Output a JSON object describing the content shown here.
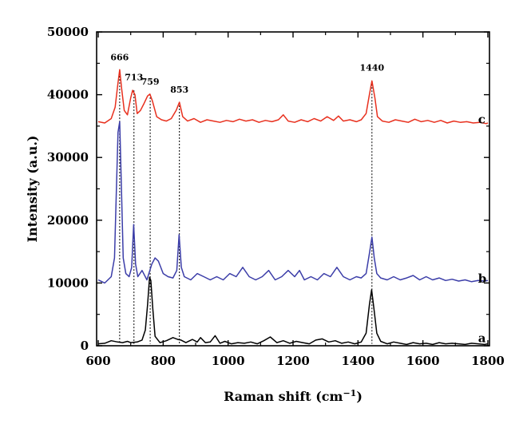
{
  "chart_data": {
    "type": "line",
    "title": "",
    "xlabel": "Raman shift (cm",
    "xlabel_sup": "−1",
    "xlabel_close": ")",
    "ylabel": "Intensity (a.u.)",
    "xlim": [
      595,
      1805
    ],
    "ylim": [
      0,
      50000
    ],
    "x_ticks": [
      600,
      800,
      1000,
      1200,
      1400,
      1600,
      1800
    ],
    "y_ticks": [
      0,
      10000,
      20000,
      30000,
      40000,
      50000
    ],
    "grid": false,
    "peak_markers": [
      {
        "label": "666",
        "x": 666,
        "peak_y": 44000,
        "label_y": 45500
      },
      {
        "label": "713",
        "x": 710,
        "peak_y": 40700,
        "label_y": 42300
      },
      {
        "label": "759",
        "x": 760,
        "peak_y": 40100,
        "label_y": 41600
      },
      {
        "label": "853",
        "x": 850,
        "peak_y": 38800,
        "label_y": 40300
      },
      {
        "label": "1440",
        "x": 1443,
        "peak_y": 42200,
        "label_y": 43800
      }
    ],
    "series": [
      {
        "name": "a",
        "color": "#000000",
        "label_x": 1770,
        "label_y": 1200,
        "x": [
          600,
          620,
          640,
          660,
          675,
          690,
          700,
          720,
          735,
          745,
          752,
          758,
          762,
          768,
          775,
          790,
          810,
          830,
          845,
          855,
          870,
          890,
          905,
          915,
          930,
          945,
          960,
          975,
          990,
          1010,
          1030,
          1050,
          1070,
          1090,
          1110,
          1130,
          1150,
          1170,
          1190,
          1210,
          1230,
          1250,
          1270,
          1290,
          1310,
          1330,
          1350,
          1370,
          1390,
          1410,
          1425,
          1435,
          1442,
          1450,
          1458,
          1470,
          1490,
          1510,
          1530,
          1550,
          1570,
          1590,
          1610,
          1630,
          1650,
          1670,
          1690,
          1710,
          1730,
          1750,
          1770,
          1790,
          1800
        ],
        "y": [
          300,
          400,
          800,
          600,
          500,
          700,
          500,
          600,
          900,
          2500,
          6500,
          10900,
          10400,
          6000,
          1500,
          500,
          800,
          1300,
          1000,
          900,
          500,
          1000,
          600,
          1300,
          500,
          600,
          1600,
          400,
          700,
          300,
          500,
          400,
          600,
          300,
          800,
          1400,
          500,
          800,
          400,
          700,
          500,
          300,
          900,
          1100,
          600,
          800,
          400,
          600,
          300,
          600,
          2000,
          6500,
          8900,
          5500,
          2000,
          700,
          300,
          600,
          400,
          200,
          500,
          300,
          400,
          200,
          500,
          300,
          400,
          300,
          200,
          400,
          300,
          200,
          300
        ]
      },
      {
        "name": "b",
        "color": "#3b3da8",
        "label_x": 1770,
        "label_y": 10700,
        "x": [
          600,
          620,
          640,
          650,
          656,
          661,
          666,
          671,
          677,
          685,
          695,
          703,
          709,
          715,
          722,
          735,
          750,
          765,
          775,
          785,
          800,
          815,
          830,
          842,
          849,
          856,
          865,
          885,
          905,
          925,
          945,
          965,
          985,
          1005,
          1025,
          1045,
          1065,
          1085,
          1105,
          1125,
          1145,
          1165,
          1185,
          1205,
          1220,
          1235,
          1255,
          1275,
          1295,
          1315,
          1335,
          1355,
          1375,
          1395,
          1410,
          1425,
          1436,
          1443,
          1450,
          1458,
          1470,
          1490,
          1510,
          1530,
          1550,
          1570,
          1590,
          1610,
          1630,
          1650,
          1670,
          1690,
          1710,
          1730,
          1750,
          1770,
          1790,
          1800
        ],
        "y": [
          10500,
          10000,
          11000,
          14000,
          25000,
          34000,
          35700,
          26000,
          14000,
          11500,
          11000,
          12500,
          19300,
          13000,
          11000,
          12000,
          10500,
          13000,
          14000,
          13500,
          11500,
          11000,
          10800,
          12000,
          17700,
          12500,
          11000,
          10500,
          11500,
          11000,
          10500,
          11000,
          10500,
          11500,
          11000,
          12500,
          11000,
          10500,
          11000,
          12000,
          10500,
          11000,
          12000,
          11000,
          12000,
          10500,
          11000,
          10500,
          11500,
          11000,
          12500,
          11000,
          10500,
          11000,
          10800,
          11500,
          15000,
          17300,
          14000,
          11500,
          10800,
          10500,
          11000,
          10500,
          10800,
          11200,
          10500,
          11000,
          10500,
          10800,
          10400,
          10600,
          10300,
          10500,
          10200,
          10400,
          10300,
          10400
        ]
      },
      {
        "name": "c",
        "color": "#e8301e",
        "label_x": 1770,
        "label_y": 36100,
        "x": [
          600,
          620,
          640,
          652,
          660,
          666,
          672,
          680,
          690,
          700,
          706,
          713,
          720,
          730,
          740,
          752,
          759,
          767,
          780,
          795,
          810,
          825,
          840,
          850,
          860,
          875,
          895,
          915,
          935,
          955,
          975,
          995,
          1015,
          1035,
          1055,
          1075,
          1095,
          1115,
          1135,
          1155,
          1170,
          1185,
          1205,
          1225,
          1245,
          1265,
          1285,
          1305,
          1325,
          1340,
          1355,
          1375,
          1395,
          1410,
          1425,
          1435,
          1443,
          1452,
          1460,
          1475,
          1495,
          1515,
          1535,
          1555,
          1575,
          1595,
          1615,
          1635,
          1655,
          1675,
          1695,
          1715,
          1735,
          1755,
          1775,
          1795,
          1800
        ],
        "y": [
          35700,
          35500,
          36200,
          38000,
          41500,
          44000,
          41000,
          37500,
          36800,
          39500,
          40700,
          40000,
          37000,
          37500,
          38500,
          39800,
          40100,
          39000,
          36500,
          36000,
          35800,
          36200,
          37500,
          38800,
          36500,
          35800,
          36200,
          35600,
          36000,
          35800,
          35600,
          35900,
          35700,
          36100,
          35800,
          36000,
          35600,
          35900,
          35700,
          36000,
          36800,
          35800,
          35600,
          36000,
          35700,
          36200,
          35800,
          36500,
          35900,
          36600,
          35800,
          36000,
          35700,
          36000,
          37000,
          40000,
          42200,
          39500,
          36500,
          35800,
          35600,
          36000,
          35800,
          35600,
          36100,
          35700,
          35900,
          35600,
          35900,
          35500,
          35800,
          35600,
          35700,
          35500,
          35600,
          35400,
          35500
        ]
      }
    ]
  }
}
